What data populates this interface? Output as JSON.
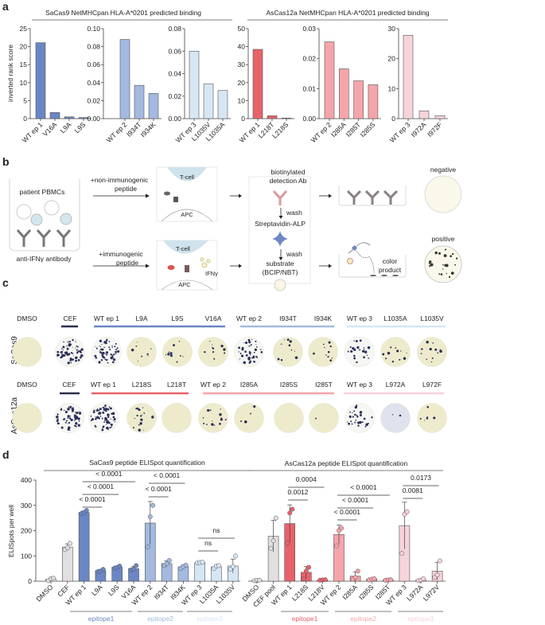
{
  "panel_labels": {
    "a": "a",
    "b": "b",
    "c": "c",
    "d": "d"
  },
  "colors": {
    "sa_ep1": "#6a86c4",
    "sa_ep2": "#a3b9e0",
    "sa_ep3": "#d6e6f5",
    "as_ep1": "#e8626a",
    "as_ep2": "#f5a5aa",
    "as_ep3": "#f7d3da",
    "control": "#e0e0e0",
    "cef_bar": "#2b2f4f"
  },
  "chart_data": [
    {
      "type": "bar",
      "group_title": "SaCas9 NetMHCpan HLA-A*0201 predicted binding",
      "ylabel": "inverted rank score",
      "categories": [
        "WT ep 1",
        "V16A",
        "L9A",
        "L9S"
      ],
      "values": [
        21.1,
        1.7,
        0.5,
        0.3
      ],
      "ylim": [
        0,
        25
      ],
      "ticks": [
        "0",
        "5",
        "10",
        "15",
        "20",
        "25"
      ],
      "tick_values": [
        0,
        5,
        10,
        15,
        20,
        25
      ],
      "color": "#6a86c4"
    },
    {
      "type": "bar",
      "categories": [
        "WT ep 2",
        "I934T",
        "I934K"
      ],
      "values": [
        0.088,
        0.037,
        0.028
      ],
      "ylim": [
        0,
        0.1
      ],
      "ticks": [
        "0.00",
        "0.02",
        "0.04",
        "0.06",
        "0.08",
        "0.10"
      ],
      "tick_values": [
        0,
        0.02,
        0.04,
        0.06,
        0.08,
        0.1
      ],
      "color": "#a3b9e0"
    },
    {
      "type": "bar",
      "categories": [
        "WT ep 3",
        "L1035V",
        "L1035A"
      ],
      "values": [
        0.06,
        0.031,
        0.025
      ],
      "ylim": [
        0,
        0.08
      ],
      "ticks": [
        "0.00",
        "0.02",
        "0.04",
        "0.06",
        "0.08"
      ],
      "tick_values": [
        0,
        0.02,
        0.04,
        0.06,
        0.08
      ],
      "color": "#d6e6f5"
    },
    {
      "type": "bar",
      "group_title": "AsCas12a NetMHCpan HLA-A*0201 predicted binding",
      "categories": [
        "WT ep 1",
        "L218T",
        "L218S"
      ],
      "values": [
        38.5,
        1.6,
        0.3
      ],
      "ylim": [
        0,
        50
      ],
      "ticks": [
        "0",
        "10",
        "20",
        "30",
        "40",
        "50"
      ],
      "tick_values": [
        0,
        10,
        20,
        30,
        40,
        50
      ],
      "color": "#e8626a"
    },
    {
      "type": "bar",
      "categories": [
        "WT ep 2",
        "I285A",
        "I285T",
        "I285S"
      ],
      "values": [
        0.0256,
        0.0166,
        0.0126,
        0.0113
      ],
      "ylim": [
        0,
        0.03
      ],
      "ticks": [
        "0.00",
        "0.01",
        "0.02",
        "0.03"
      ],
      "tick_values": [
        0,
        0.01,
        0.02,
        0.03
      ],
      "color": "#f5a5aa"
    },
    {
      "type": "bar",
      "categories": [
        "WT ep 3",
        "I972A",
        "I972F"
      ],
      "values": [
        27.8,
        2.6,
        1.0
      ],
      "ylim": [
        0,
        30
      ],
      "ticks": [
        "0",
        "10",
        "20",
        "30"
      ],
      "tick_values": [
        0,
        10,
        20,
        30
      ],
      "color": "#f7d3da"
    },
    {
      "type": "bar",
      "title": "SaCas9 peptide ELISpot quantification",
      "ylabel": "ELISpots per well",
      "ylim": [
        0,
        400
      ],
      "ticks": [
        "0",
        "100",
        "200",
        "300",
        "400"
      ],
      "tick_values": [
        0,
        100,
        200,
        300,
        400
      ],
      "categories": [
        "DMSO",
        "CEF",
        "WT ep 1",
        "L9A",
        "L9S",
        "V16A",
        "WT ep 2",
        "I934T",
        "I934K",
        "WT ep 3",
        "L1035A",
        "L1035V"
      ],
      "values": [
        8,
        135,
        272,
        42,
        55,
        50,
        230,
        70,
        57,
        73,
        57,
        60
      ],
      "points": [
        [
          2,
          10,
          12
        ],
        [
          125,
          132,
          150
        ],
        [
          268,
          272,
          280
        ],
        [
          38,
          40,
          47
        ],
        [
          52,
          55,
          60
        ],
        [
          45,
          48,
          62
        ],
        [
          135,
          255,
          300
        ],
        [
          62,
          70,
          82
        ],
        [
          50,
          58,
          64
        ],
        [
          72,
          74,
          75
        ],
        [
          50,
          60,
          62
        ],
        [
          48,
          58,
          100
        ]
      ],
      "colors": [
        "#ffffff",
        "#e0e0e0",
        "#6a86c4",
        "#6a86c4",
        "#6a86c4",
        "#6a86c4",
        "#a3b9e0",
        "#a3b9e0",
        "#a3b9e0",
        "#d6e6f5",
        "#d6e6f5",
        "#d6e6f5"
      ],
      "comparisons": [
        {
          "from": "WT ep 1",
          "to": "L9A",
          "p": "< 0.0001"
        },
        {
          "from": "WT ep 1",
          "to": "L9S",
          "p": "< 0.0001"
        },
        {
          "from": "WT ep 1",
          "to": "V16A",
          "p": "< 0.0001"
        },
        {
          "from": "WT ep 2",
          "to": "I934T",
          "p": "< 0.0001"
        },
        {
          "from": "WT ep 2",
          "to": "I934K",
          "p": "< 0.0001"
        },
        {
          "from": "WT ep 3",
          "to": "L1035A",
          "p": "ns"
        },
        {
          "from": "WT ep 3",
          "to": "L1035V",
          "p": "ns"
        }
      ],
      "groups": [
        {
          "label": "epitope1",
          "color": "#6a86c4"
        },
        {
          "label": "epitope2",
          "color": "#a3b9e0"
        },
        {
          "label": "epitope3",
          "color": "#d6e6f5"
        }
      ]
    },
    {
      "type": "bar",
      "title": "AsCas12a peptide ELISpot quantification",
      "ylim": [
        0,
        400
      ],
      "categories": [
        "DMSO",
        "CEF pool",
        "WT ep 1",
        "L218S",
        "L218V",
        "WT ep 2",
        "I285A",
        "I285S",
        "I285T",
        "WT ep 3",
        "L972A",
        "L972V"
      ],
      "values": [
        3,
        178,
        228,
        35,
        5,
        185,
        20,
        8,
        5,
        220,
        5,
        40
      ],
      "points": [
        [
          2,
          3,
          4
        ],
        [
          130,
          160,
          250
        ],
        [
          150,
          270,
          285
        ],
        [
          10,
          40,
          55
        ],
        [
          4,
          5,
          6
        ],
        [
          140,
          200,
          210
        ],
        [
          8,
          15,
          40
        ],
        [
          5,
          8,
          10
        ],
        [
          4,
          5,
          6
        ],
        [
          110,
          265,
          275
        ],
        [
          2,
          4,
          10
        ],
        [
          15,
          25,
          80
        ]
      ],
      "colors": [
        "#ffffff",
        "#e0e0e0",
        "#e8626a",
        "#e8626a",
        "#e8626a",
        "#f5a5aa",
        "#f5a5aa",
        "#f5a5aa",
        "#f5a5aa",
        "#f7d3da",
        "#f7d3da",
        "#f7d3da"
      ],
      "comparisons": [
        {
          "from": "WT ep 1",
          "to": "L218S",
          "p": "0.0012"
        },
        {
          "from": "WT ep 1",
          "to": "L218V",
          "p": "0.0004"
        },
        {
          "from": "WT ep 2",
          "to": "I285A",
          "p": "< 0.0001"
        },
        {
          "from": "WT ep 2",
          "to": "I285S",
          "p": "< 0.0001"
        },
        {
          "from": "WT ep 2",
          "to": "I285T",
          "p": "< 0.0001"
        },
        {
          "from": "WT ep 3",
          "to": "L972A",
          "p": "0.0081"
        },
        {
          "from": "WT ep 3",
          "to": "L972V",
          "p": "0.0173"
        }
      ],
      "groups": [
        {
          "label": "epitope1",
          "color": "#e8626a"
        },
        {
          "label": "epitope2",
          "color": "#f5a5aa"
        },
        {
          "label": "epitope3",
          "color": "#f7d3da"
        }
      ]
    }
  ],
  "diagram": {
    "pbmcs": "patient PBMCs",
    "antibody": "anti-IFNγ antibody",
    "non_immuno_1": "+non-immunogenic",
    "non_immuno_2": "peptide",
    "immuno_1": "+immunogenic",
    "immuno_2": "peptide",
    "tcell": "T-cell",
    "apc": "APC",
    "ifng": "IFNγ",
    "detection_1": "biotinylated",
    "detection_2": "detection Ab",
    "wash": "wash",
    "strep": "Streptavidin-ALP",
    "substrate_1": "substrate",
    "substrate_2": "(BCIP/NBT)",
    "negative": "negative",
    "positive": "positive",
    "color_1": "color",
    "color_2": "product"
  },
  "wells": {
    "rows": [
      {
        "label": "SaCas9",
        "wells": [
          "DMSO",
          "CEF",
          "WT ep 1",
          "L9A",
          "L9S",
          "V16A",
          "WT ep 2",
          "I934T",
          "I934K",
          "WT ep 3",
          "L1035A",
          "L1035V"
        ]
      },
      {
        "label": "AsCas12a",
        "wells": [
          "DMSO",
          "CEF",
          "WT ep 1",
          "L218S",
          "L218T",
          "WT ep 2",
          "I285A",
          "I285S",
          "I285T",
          "WT ep 3",
          "L972A",
          "L972F"
        ]
      }
    ]
  }
}
